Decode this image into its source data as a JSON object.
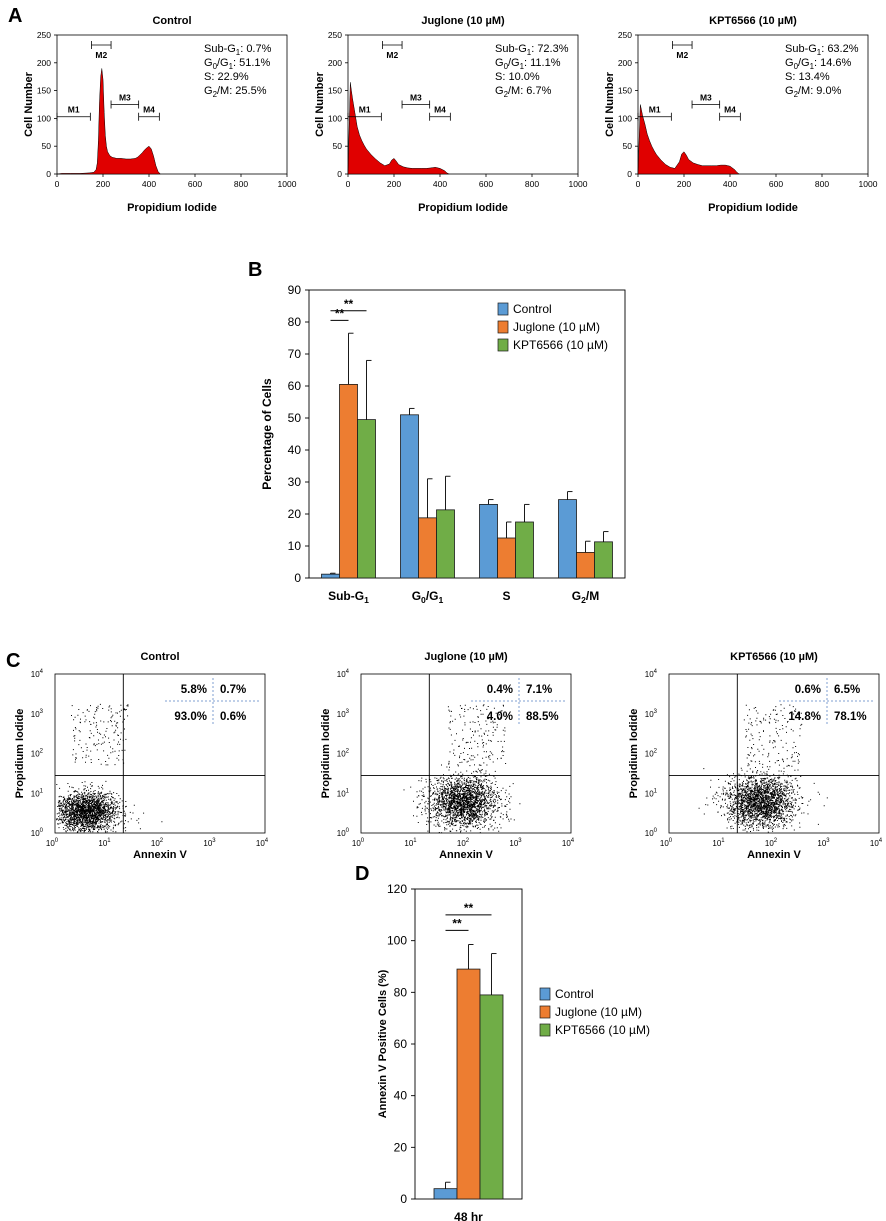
{
  "panel_labels": [
    "A",
    "B",
    "C",
    "D"
  ],
  "colors": {
    "control": "#5b9bd5",
    "juglone": "#ed7d31",
    "kpt": "#70ad47",
    "histogram_fill": "#e00000",
    "quadrant_divider": "#7f9fd0"
  },
  "chart_data": [
    {
      "type": "area",
      "panel": "A",
      "xlabel": "Propidium Iodide",
      "ylabel": "Cell Number",
      "xlim": [
        0,
        1000
      ],
      "ylim": [
        0,
        250
      ],
      "xticks": [
        "0",
        "200",
        "400",
        "600",
        "800",
        "1000"
      ],
      "yticks": [
        "0",
        "50",
        "100",
        "150",
        "200",
        "250"
      ],
      "markers": [
        {
          "name": "M1",
          "range": [
            0,
            145
          ],
          "y": 103
        },
        {
          "name": "M2",
          "range": [
            150,
            235
          ],
          "y": 232
        },
        {
          "name": "M3",
          "range": [
            235,
            355
          ],
          "y": 125
        },
        {
          "name": "M4",
          "range": [
            355,
            445
          ],
          "y": 103
        }
      ],
      "histograms": [
        {
          "title": "Control",
          "stats": {
            "sub_g1": "0.7%",
            "g0_g1": "51.1%",
            "s": "22.9%",
            "g2_m": "25.5%"
          },
          "x": [
            0,
            20,
            60,
            100,
            140,
            160,
            170,
            175,
            180,
            185,
            190,
            195,
            200,
            205,
            210,
            215,
            220,
            230,
            240,
            260,
            280,
            300,
            320,
            340,
            350,
            360,
            370,
            380,
            390,
            400,
            410,
            420,
            430,
            440,
            450
          ],
          "y": [
            0,
            1,
            1,
            1,
            2,
            3,
            8,
            20,
            60,
            130,
            175,
            190,
            170,
            110,
            70,
            50,
            40,
            33,
            30,
            28,
            28,
            27,
            27,
            28,
            30,
            34,
            38,
            43,
            47,
            50,
            45,
            32,
            15,
            4,
            0
          ]
        },
        {
          "title": "Juglone (10 µM)",
          "stats": {
            "sub_g1": "72.3%",
            "g0_g1": "11.1%",
            "s": "10.0%",
            "g2_m": "6.7%"
          },
          "x": [
            0,
            5,
            10,
            15,
            20,
            30,
            40,
            50,
            60,
            70,
            80,
            100,
            120,
            140,
            160,
            180,
            190,
            200,
            210,
            220,
            240,
            260,
            280,
            300,
            320,
            340,
            360,
            380,
            400,
            420,
            430,
            440
          ],
          "y": [
            0,
            80,
            165,
            150,
            135,
            110,
            85,
            70,
            60,
            52,
            45,
            35,
            27,
            20,
            15,
            18,
            25,
            28,
            23,
            17,
            13,
            11,
            10,
            10,
            10,
            10,
            11,
            12,
            10,
            6,
            2,
            0
          ]
        },
        {
          "title": "KPT6566 (10 µM)",
          "stats": {
            "sub_g1": "63.2%",
            "g0_g1": "14.6%",
            "s": "13.4%",
            "g2_m": "9.0%"
          },
          "x": [
            0,
            5,
            10,
            15,
            20,
            30,
            40,
            50,
            60,
            70,
            80,
            100,
            120,
            140,
            160,
            180,
            190,
            200,
            210,
            220,
            240,
            260,
            280,
            300,
            320,
            340,
            360,
            380,
            400,
            420,
            430,
            440
          ],
          "y": [
            0,
            60,
            125,
            115,
            105,
            90,
            72,
            60,
            50,
            42,
            35,
            25,
            17,
            12,
            10,
            22,
            36,
            40,
            34,
            26,
            20,
            17,
            15,
            15,
            15,
            15,
            16,
            16,
            14,
            8,
            3,
            0
          ]
        }
      ]
    },
    {
      "type": "bar",
      "panel": "B",
      "ylabel": "Percentage of Cells",
      "ylim": [
        0,
        90
      ],
      "yticks": [
        "0",
        "10",
        "20",
        "30",
        "40",
        "50",
        "60",
        "70",
        "80",
        "90"
      ],
      "categories": [
        "Sub-G1",
        "G0/G1",
        "S",
        "G2/M"
      ],
      "series": [
        {
          "name": "Control",
          "values": [
            1.2,
            51.0,
            23.0,
            24.5
          ],
          "errors": [
            0.3,
            2.0,
            1.5,
            2.5
          ]
        },
        {
          "name": "Juglone (10 µM)",
          "values": [
            60.5,
            18.8,
            12.5,
            8.0
          ],
          "errors": [
            16.0,
            12.2,
            5.0,
            3.5
          ]
        },
        {
          "name": "KPT6566 (10 µM)",
          "values": [
            49.5,
            21.3,
            17.5,
            11.3
          ],
          "errors": [
            18.5,
            10.5,
            5.5,
            3.2
          ]
        }
      ],
      "significance": [
        {
          "label": "**",
          "from_series": 0,
          "to_series": 1,
          "y": 80.5
        },
        {
          "label": "**",
          "from_series": 0,
          "to_series": 2,
          "y": 83.5
        }
      ],
      "legend_position": "top-right"
    },
    {
      "type": "scatter",
      "panel": "C",
      "xlabel": "Annexin V",
      "ylabel": "Propidium Iodide",
      "scale": "log",
      "xlim": [
        1,
        10000
      ],
      "ylim": [
        1,
        10000
      ],
      "tick_bases": [
        "10",
        "10",
        "10",
        "10",
        "10"
      ],
      "tick_exponents": [
        "0",
        "1",
        "2",
        "3",
        "4"
      ],
      "gate": {
        "x": 20,
        "y": 28
      },
      "plots": [
        {
          "title": "Control",
          "quadrants": {
            "upper_left": "5.8%",
            "upper_right": "0.7%",
            "lower_left": "93.0%",
            "lower_right": "0.6%"
          },
          "center_log": [
            0.6,
            0.55
          ],
          "spread": [
            0.3,
            0.25
          ]
        },
        {
          "title": "Juglone (10 µM)",
          "quadrants": {
            "upper_left": "0.4%",
            "upper_right": "7.1%",
            "lower_left": "4.0%",
            "lower_right": "88.5%"
          },
          "center_log": [
            1.95,
            0.8
          ],
          "spread": [
            0.33,
            0.33
          ]
        },
        {
          "title": "KPT6566 (10 µM)",
          "quadrants": {
            "upper_left": "0.6%",
            "upper_right": "6.5%",
            "lower_left": "14.8%",
            "lower_right": "78.1%"
          },
          "center_log": [
            1.72,
            0.8
          ],
          "spread": [
            0.33,
            0.33
          ]
        }
      ]
    },
    {
      "type": "bar",
      "panel": "D",
      "ylabel": "Annexin V Positive Cells (%)",
      "ylim": [
        0,
        120
      ],
      "yticks": [
        "0",
        "20",
        "40",
        "60",
        "80",
        "100",
        "120"
      ],
      "categories": [
        "48 hr"
      ],
      "series": [
        {
          "name": "Control",
          "values": [
            4.0
          ],
          "errors": [
            2.5
          ]
        },
        {
          "name": "Juglone (10 µM)",
          "values": [
            89.0
          ],
          "errors": [
            9.5
          ]
        },
        {
          "name": "KPT6566 (10 µM)",
          "values": [
            79.0
          ],
          "errors": [
            16.0
          ]
        }
      ],
      "significance": [
        {
          "label": "**",
          "from_series": 0,
          "to_series": 1,
          "y": 104
        },
        {
          "label": "**",
          "from_series": 0,
          "to_series": 2,
          "y": 110
        }
      ],
      "legend_position": "right"
    }
  ]
}
